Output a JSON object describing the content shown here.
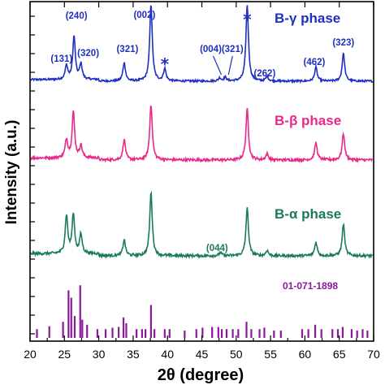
{
  "chart_data": {
    "type": "line",
    "xlabel": "2θ (degree)",
    "ylabel": "Intensity (a.u.)",
    "xlim": [
      20,
      70
    ],
    "xticks": [
      20,
      25,
      30,
      35,
      40,
      45,
      50,
      55,
      60,
      65,
      70
    ],
    "series": [
      {
        "name": "B-γ phase",
        "color": "#1f2fbf",
        "baseline": 0.11,
        "peaks": [
          {
            "x": 25.3,
            "h": 0.18,
            "label": "(131)"
          },
          {
            "x": 26.4,
            "h": 0.56,
            "label": "(240)"
          },
          {
            "x": 27.4,
            "h": 0.2,
            "label": "(320)"
          },
          {
            "x": 33.7,
            "h": 0.24,
            "label": "(321)"
          },
          {
            "x": 37.6,
            "h": 1.0,
            "label": "(002)"
          },
          {
            "x": 39.6,
            "h": 0.16,
            "label": "*"
          },
          {
            "x": 47.6,
            "h": 0.04,
            "label": "(004)"
          },
          {
            "x": 48.4,
            "h": 0.05,
            "label": "(321)"
          },
          {
            "x": 51.6,
            "h": 0.99,
            "label": "*"
          },
          {
            "x": 54.5,
            "h": 0.06,
            "label": "(262)"
          },
          {
            "x": 61.6,
            "h": 0.18,
            "label": "(462)"
          },
          {
            "x": 65.6,
            "h": 0.36,
            "label": "(323)"
          }
        ]
      },
      {
        "name": "B-β phase",
        "color": "#e8288a",
        "baseline": 0.1,
        "peaks": [
          {
            "x": 25.3,
            "h": 0.18
          },
          {
            "x": 26.3,
            "h": 0.45
          },
          {
            "x": 27.4,
            "h": 0.12
          },
          {
            "x": 33.7,
            "h": 0.2
          },
          {
            "x": 37.6,
            "h": 0.55
          },
          {
            "x": 51.6,
            "h": 0.5
          },
          {
            "x": 54.5,
            "h": 0.06
          },
          {
            "x": 61.6,
            "h": 0.17
          },
          {
            "x": 65.6,
            "h": 0.26
          }
        ]
      },
      {
        "name": "B-α phase",
        "color": "#1a7a5a",
        "baseline": 0.1,
        "peaks": [
          {
            "x": 25.3,
            "h": 0.36
          },
          {
            "x": 26.3,
            "h": 0.37
          },
          {
            "x": 27.4,
            "h": 0.18
          },
          {
            "x": 33.7,
            "h": 0.15
          },
          {
            "x": 37.6,
            "h": 0.6
          },
          {
            "x": 47.7,
            "h": 0.03,
            "label": "(044)"
          },
          {
            "x": 51.6,
            "h": 0.45
          },
          {
            "x": 54.5,
            "h": 0.05
          },
          {
            "x": 61.6,
            "h": 0.13
          },
          {
            "x": 65.6,
            "h": 0.3
          }
        ]
      }
    ],
    "reference": {
      "name": "01-071-1898",
      "color": "#8a1a9a",
      "sticks": [
        {
          "x": 21.0,
          "h": 0.12
        },
        {
          "x": 22.8,
          "h": 0.16
        },
        {
          "x": 24.8,
          "h": 0.22
        },
        {
          "x": 25.6,
          "h": 0.65
        },
        {
          "x": 26.0,
          "h": 0.55
        },
        {
          "x": 26.5,
          "h": 0.3
        },
        {
          "x": 27.3,
          "h": 0.72
        },
        {
          "x": 27.6,
          "h": 0.25
        },
        {
          "x": 28.3,
          "h": 0.18
        },
        {
          "x": 29.8,
          "h": 0.12
        },
        {
          "x": 31.0,
          "h": 0.12
        },
        {
          "x": 32.0,
          "h": 0.14
        },
        {
          "x": 32.9,
          "h": 0.15
        },
        {
          "x": 33.6,
          "h": 0.28
        },
        {
          "x": 34.0,
          "h": 0.2
        },
        {
          "x": 35.5,
          "h": 0.12
        },
        {
          "x": 36.3,
          "h": 0.12
        },
        {
          "x": 36.8,
          "h": 0.12
        },
        {
          "x": 37.6,
          "h": 0.45
        },
        {
          "x": 38.1,
          "h": 0.12
        },
        {
          "x": 39.6,
          "h": 0.12
        },
        {
          "x": 40.3,
          "h": 0.12
        },
        {
          "x": 42.5,
          "h": 0.1
        },
        {
          "x": 44.2,
          "h": 0.12
        },
        {
          "x": 45.1,
          "h": 0.14
        },
        {
          "x": 46.5,
          "h": 0.15
        },
        {
          "x": 47.4,
          "h": 0.15
        },
        {
          "x": 47.9,
          "h": 0.12
        },
        {
          "x": 48.6,
          "h": 0.12
        },
        {
          "x": 49.5,
          "h": 0.12
        },
        {
          "x": 50.3,
          "h": 0.12
        },
        {
          "x": 51.5,
          "h": 0.22
        },
        {
          "x": 52.2,
          "h": 0.12
        },
        {
          "x": 53.4,
          "h": 0.12
        },
        {
          "x": 54.1,
          "h": 0.14
        },
        {
          "x": 55.5,
          "h": 0.1
        },
        {
          "x": 56.5,
          "h": 0.1
        },
        {
          "x": 59.6,
          "h": 0.12
        },
        {
          "x": 60.5,
          "h": 0.12
        },
        {
          "x": 61.5,
          "h": 0.18
        },
        {
          "x": 62.4,
          "h": 0.12
        },
        {
          "x": 64.0,
          "h": 0.12
        },
        {
          "x": 64.8,
          "h": 0.12
        },
        {
          "x": 65.5,
          "h": 0.15
        },
        {
          "x": 66.8,
          "h": 0.12
        },
        {
          "x": 67.6,
          "h": 0.1
        },
        {
          "x": 68.4,
          "h": 0.12
        },
        {
          "x": 69.1,
          "h": 0.1
        }
      ]
    }
  }
}
